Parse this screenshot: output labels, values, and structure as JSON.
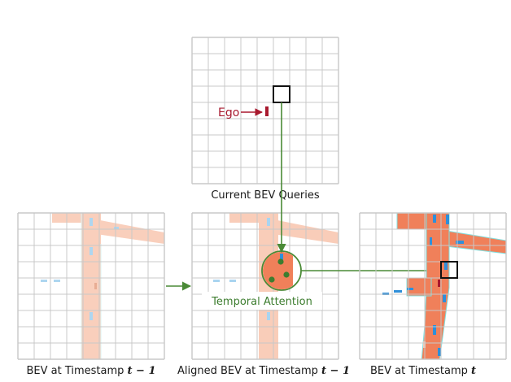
{
  "panels": {
    "current": {
      "caption": "Current BEV Queries"
    },
    "prev": {
      "caption_prefix": "BEV at Timestamp ",
      "caption_math": "t − 1"
    },
    "aligned": {
      "caption_prefix": "Aligned BEV at Timestamp ",
      "caption_math": "t − 1"
    },
    "now": {
      "caption_prefix": "BEV at Timestamp ",
      "caption_math": "t"
    }
  },
  "ego_label": "Ego",
  "attention_label": "Temporal Attention",
  "colors": {
    "grid": "#c8c8c8",
    "road_strong": "#f0805a",
    "road_faded": "#f9cdb9",
    "road_edge": "#7fe0e0",
    "lane_blue": "#2f8fd9",
    "lane_blue_faded": "#a9d4f0",
    "ego_red": "#a8192e",
    "arrow_green": "#4a8a36",
    "attn_dot": "#3d7d2f"
  },
  "icons": [
    "ego-arrow-icon",
    "query-box-icon",
    "attention-circle-icon"
  ]
}
